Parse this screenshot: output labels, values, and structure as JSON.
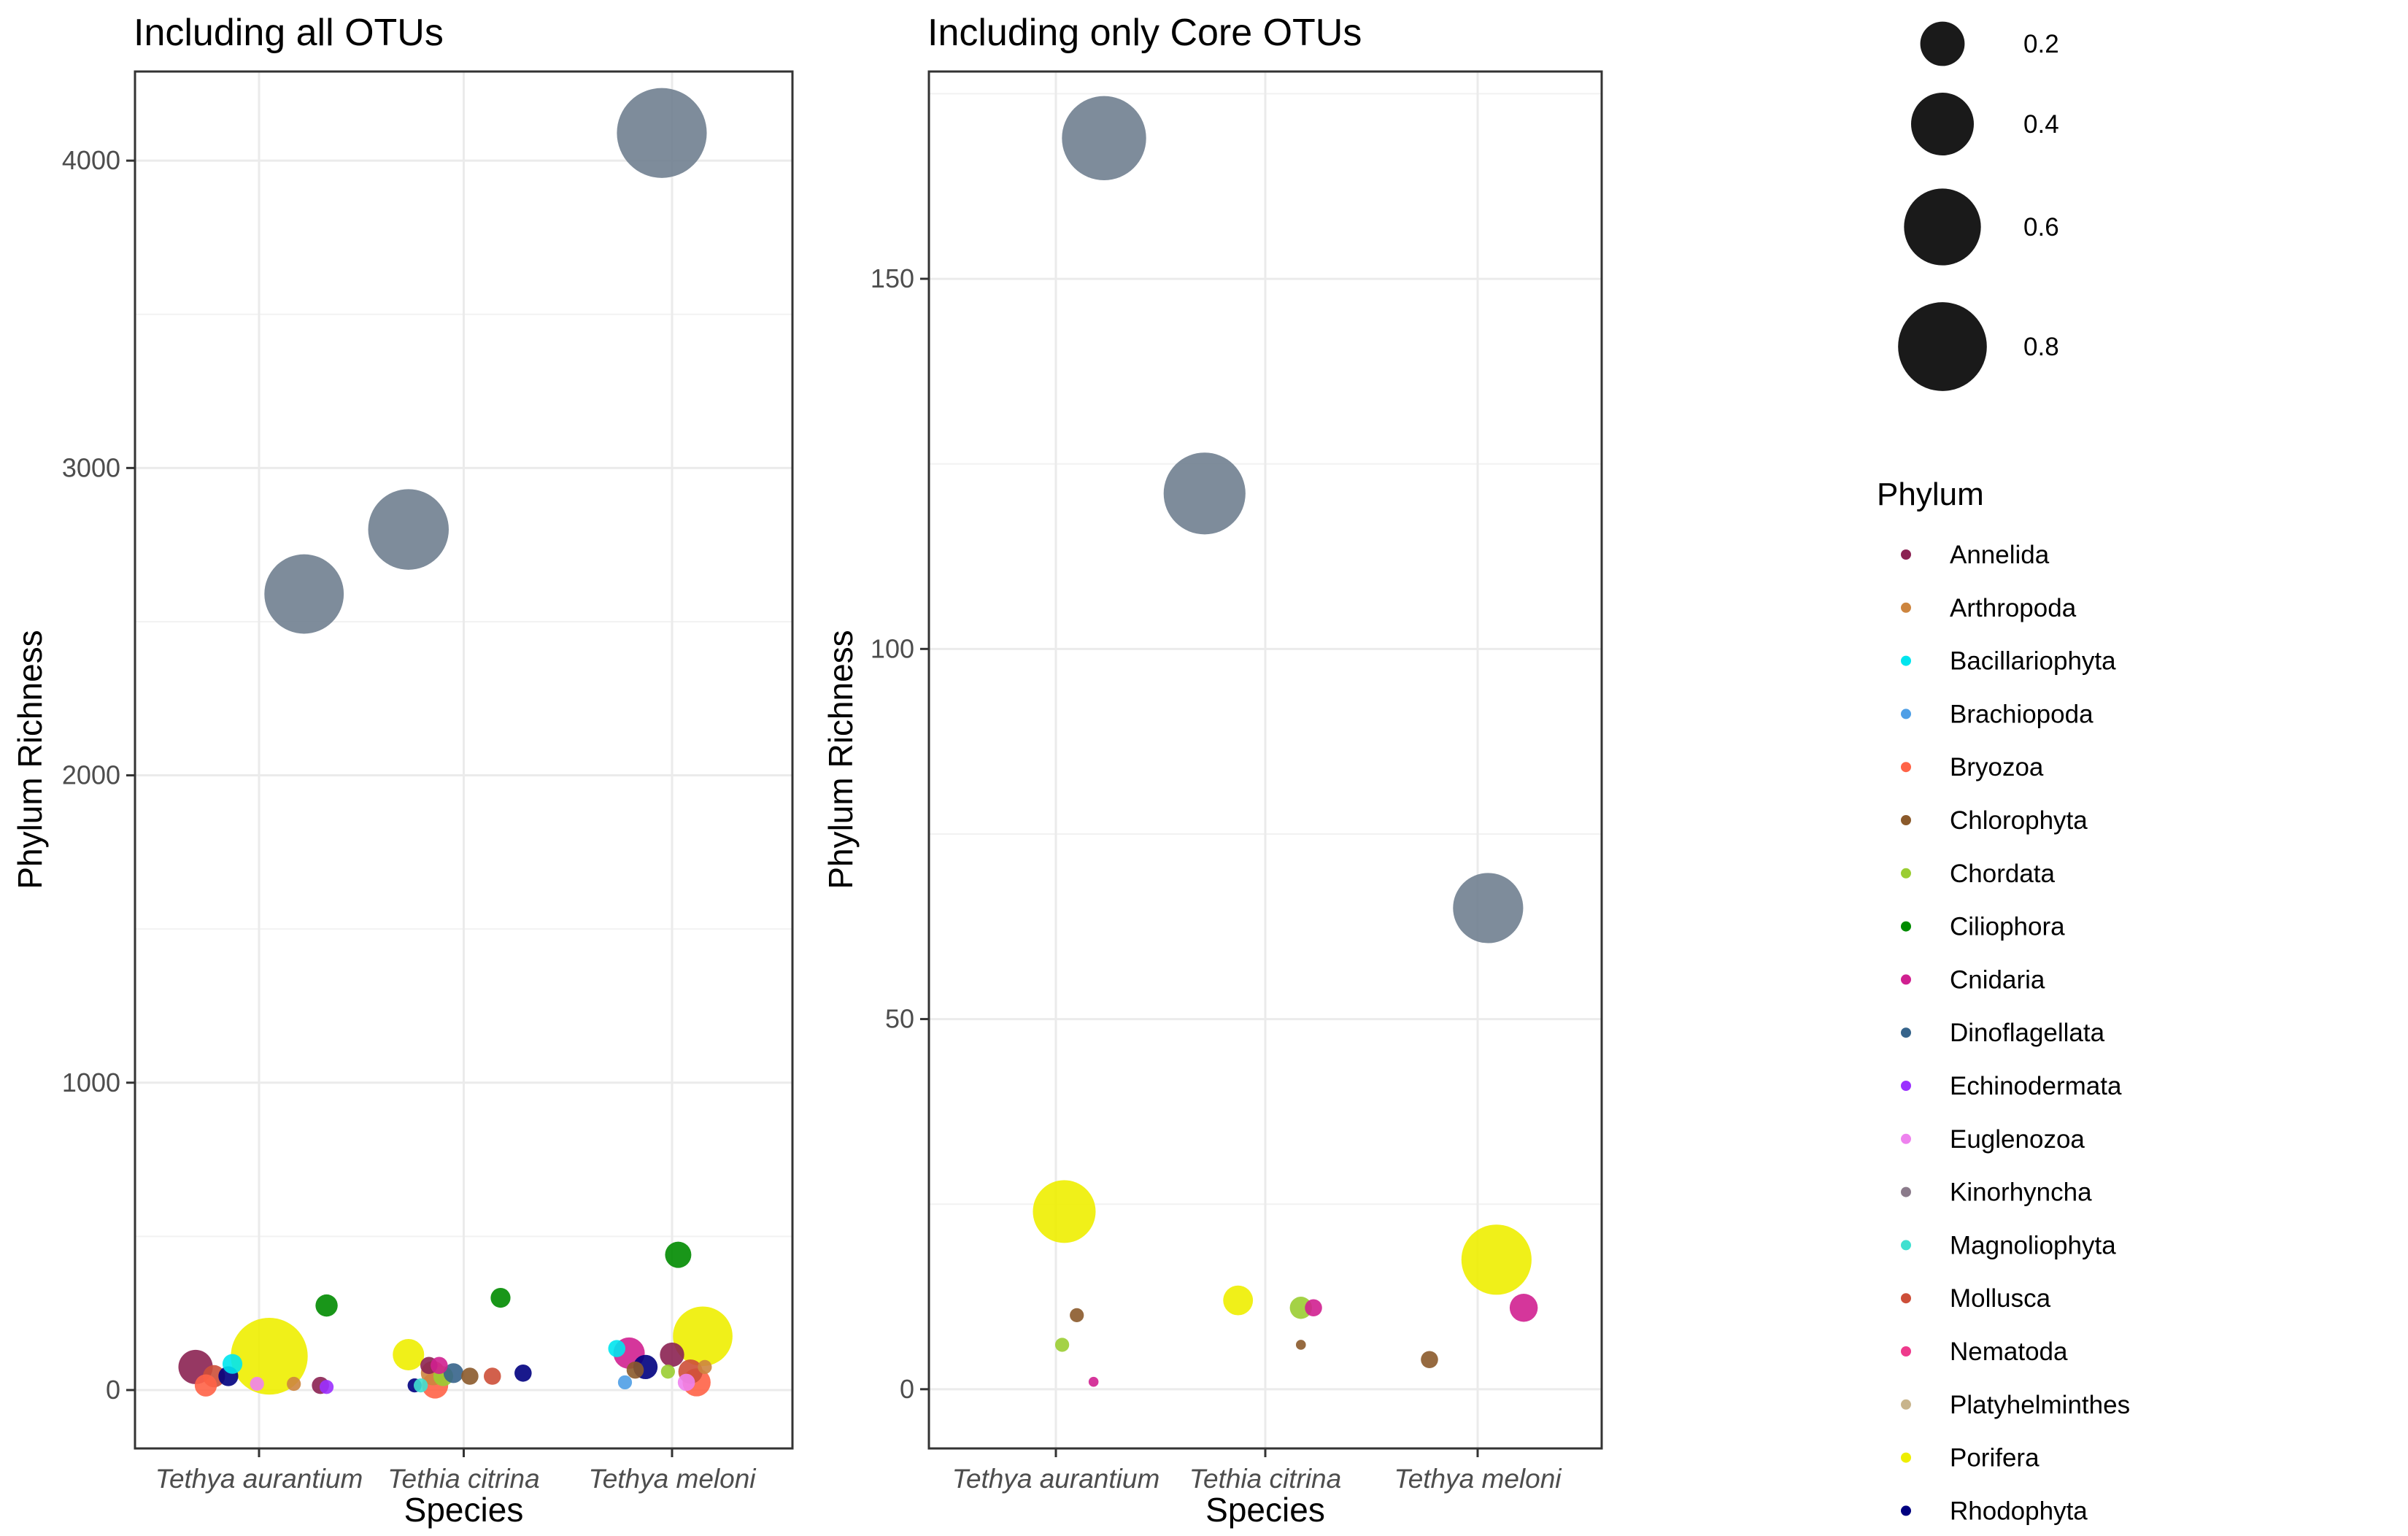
{
  "chart_data": [
    {
      "type": "scatter",
      "title": "Including all OTUs",
      "xlabel": "Species",
      "ylabel": "Phylum Richness",
      "categories": [
        "Tethya aurantium",
        "Tethia citrina",
        "Tethya meloni"
      ],
      "yticks": [
        0,
        1000,
        2000,
        3000,
        4000
      ],
      "ylim": [
        -190,
        4290
      ],
      "grid": true,
      "points": [
        {
          "category": 0,
          "offset": 0.22,
          "phylum": "Unassigned",
          "y": 2590,
          "size": 0.64
        },
        {
          "category": 0,
          "offset": 0.05,
          "phylum": "Porifera",
          "y": 110,
          "size": 0.6
        },
        {
          "category": 0,
          "offset": -0.31,
          "phylum": "Annelida",
          "y": 75,
          "size": 0.12
        },
        {
          "category": 0,
          "offset": -0.22,
          "phylum": "Mollusca",
          "y": 45,
          "size": 0.05
        },
        {
          "category": 0,
          "offset": -0.26,
          "phylum": "Bryozoa",
          "y": 15,
          "size": 0.05
        },
        {
          "category": 0,
          "offset": -0.15,
          "phylum": "Rhodophyta",
          "y": 45,
          "size": 0.04
        },
        {
          "category": 0,
          "offset": -0.13,
          "phylum": "Bacillariophyta",
          "y": 85,
          "size": 0.04
        },
        {
          "category": 0,
          "offset": 0.33,
          "phylum": "Ciliophora",
          "y": 275,
          "size": 0.05
        },
        {
          "category": 0,
          "offset": -0.01,
          "phylum": "Euglenozoa",
          "y": 20,
          "size": 0.02
        },
        {
          "category": 0,
          "offset": 0.3,
          "phylum": "Annelida",
          "y": 15,
          "size": 0.03
        },
        {
          "category": 0,
          "offset": 0.33,
          "phylum": "Echinodermata",
          "y": 10,
          "size": 0.02
        },
        {
          "category": 0,
          "offset": 0.17,
          "phylum": "Arthropoda",
          "y": 20,
          "size": 0.02
        },
        {
          "category": 1,
          "offset": -0.27,
          "phylum": "Unassigned",
          "y": 2800,
          "size": 0.66
        },
        {
          "category": 1,
          "offset": -0.27,
          "phylum": "Porifera",
          "y": 115,
          "size": 0.1
        },
        {
          "category": 1,
          "offset": -0.17,
          "phylum": "Annelida",
          "y": 80,
          "size": 0.03
        },
        {
          "category": 1,
          "offset": -0.12,
          "phylum": "Cnidaria",
          "y": 80,
          "size": 0.03
        },
        {
          "category": 1,
          "offset": -0.15,
          "phylum": "Arthropoda",
          "y": 55,
          "size": 0.06
        },
        {
          "category": 1,
          "offset": -0.1,
          "phylum": "Chordata",
          "y": 45,
          "size": 0.04
        },
        {
          "category": 1,
          "offset": -0.05,
          "phylum": "Dinoflagellata",
          "y": 55,
          "size": 0.04
        },
        {
          "category": 1,
          "offset": -0.14,
          "phylum": "Bryozoa",
          "y": 15,
          "size": 0.07
        },
        {
          "category": 1,
          "offset": 0.03,
          "phylum": "Chlorophyta",
          "y": 45,
          "size": 0.03
        },
        {
          "category": 1,
          "offset": 0.14,
          "phylum": "Mollusca",
          "y": 45,
          "size": 0.03
        },
        {
          "category": 1,
          "offset": 0.18,
          "phylum": "Ciliophora",
          "y": 300,
          "size": 0.04
        },
        {
          "category": 1,
          "offset": 0.29,
          "phylum": "Rhodophyta",
          "y": 55,
          "size": 0.03
        },
        {
          "category": 1,
          "offset": -0.24,
          "phylum": "Rhodophyta",
          "y": 15,
          "size": 0.02
        },
        {
          "category": 1,
          "offset": -0.21,
          "phylum": "Magnoliophyta",
          "y": 15,
          "size": 0.02
        },
        {
          "category": 2,
          "offset": -0.05,
          "phylum": "Unassigned",
          "y": 4090,
          "size": 0.82
        },
        {
          "category": 2,
          "offset": 0.15,
          "phylum": "Porifera",
          "y": 175,
          "size": 0.36
        },
        {
          "category": 2,
          "offset": 0.03,
          "phylum": "Ciliophora",
          "y": 440,
          "size": 0.07
        },
        {
          "category": 2,
          "offset": -0.21,
          "phylum": "Cnidaria",
          "y": 120,
          "size": 0.1
        },
        {
          "category": 2,
          "offset": 0.0,
          "phylum": "Annelida",
          "y": 115,
          "size": 0.06
        },
        {
          "category": 2,
          "offset": -0.27,
          "phylum": "Bacillariophyta",
          "y": 135,
          "size": 0.03
        },
        {
          "category": 2,
          "offset": -0.13,
          "phylum": "Rhodophyta",
          "y": 75,
          "size": 0.06
        },
        {
          "category": 2,
          "offset": -0.18,
          "phylum": "Chlorophyta",
          "y": 65,
          "size": 0.03
        },
        {
          "category": 2,
          "offset": -0.02,
          "phylum": "Chordata",
          "y": 60,
          "size": 0.02
        },
        {
          "category": 2,
          "offset": 0.09,
          "phylum": "Mollusca",
          "y": 60,
          "size": 0.06
        },
        {
          "category": 2,
          "offset": 0.16,
          "phylum": "Arthropoda",
          "y": 75,
          "size": 0.02
        },
        {
          "category": 2,
          "offset": 0.12,
          "phylum": "Bryozoa",
          "y": 25,
          "size": 0.08
        },
        {
          "category": 2,
          "offset": 0.07,
          "phylum": "Euglenozoa",
          "y": 25,
          "size": 0.03
        },
        {
          "category": 2,
          "offset": -0.23,
          "phylum": "Brachiopoda",
          "y": 25,
          "size": 0.02
        }
      ]
    },
    {
      "type": "scatter",
      "title": "Including only Core OTUs",
      "xlabel": "Species",
      "ylabel": "Phylum Richness",
      "categories": [
        "Tethya aurantium",
        "Tethia citrina",
        "Tethya meloni"
      ],
      "yticks": [
        0,
        50,
        100,
        150
      ],
      "ylim": [
        -8,
        178
      ],
      "grid": true,
      "points": [
        {
          "category": 0,
          "offset": 0.23,
          "phylum": "Unassigned",
          "y": 169,
          "size": 0.72
        },
        {
          "category": 0,
          "offset": 0.04,
          "phylum": "Porifera",
          "y": 24,
          "size": 0.4
        },
        {
          "category": 0,
          "offset": 0.1,
          "phylum": "Chlorophyta",
          "y": 10,
          "size": 0.02
        },
        {
          "category": 0,
          "offset": 0.03,
          "phylum": "Chordata",
          "y": 6,
          "size": 0.02
        },
        {
          "category": 0,
          "offset": 0.18,
          "phylum": "Cnidaria",
          "y": 1,
          "size": 0.01
        },
        {
          "category": 1,
          "offset": -0.29,
          "phylum": "Unassigned",
          "y": 121,
          "size": 0.68
        },
        {
          "category": 1,
          "offset": -0.13,
          "phylum": "Porifera",
          "y": 12,
          "size": 0.09
        },
        {
          "category": 1,
          "offset": 0.17,
          "phylum": "Chordata",
          "y": 11,
          "size": 0.05
        },
        {
          "category": 1,
          "offset": 0.23,
          "phylum": "Cnidaria",
          "y": 11,
          "size": 0.03
        },
        {
          "category": 1,
          "offset": 0.17,
          "phylum": "Chlorophyta",
          "y": 6,
          "size": 0.01
        },
        {
          "category": 2,
          "offset": 0.05,
          "phylum": "Unassigned",
          "y": 65,
          "size": 0.5
        },
        {
          "category": 2,
          "offset": 0.09,
          "phylum": "Porifera",
          "y": 17.5,
          "size": 0.5
        },
        {
          "category": 2,
          "offset": 0.22,
          "phylum": "Cnidaria",
          "y": 11,
          "size": 0.08
        },
        {
          "category": 2,
          "offset": -0.23,
          "phylum": "Chlorophyta",
          "y": 4,
          "size": 0.03
        }
      ]
    }
  ],
  "legend_size": {
    "entries": [
      {
        "value": 0.2,
        "label": "0.2"
      },
      {
        "value": 0.4,
        "label": "0.4"
      },
      {
        "value": 0.6,
        "label": "0.6"
      },
      {
        "value": 0.8,
        "label": "0.8"
      }
    ]
  },
  "legend_phylum": {
    "title": "Phylum",
    "entries": [
      {
        "label": "Annelida",
        "color": "#8B2252"
      },
      {
        "label": "Arthropoda",
        "color": "#CD853F"
      },
      {
        "label": "Bacillariophyta",
        "color": "#00E5EE"
      },
      {
        "label": "Brachiopoda",
        "color": "#4F9FE6"
      },
      {
        "label": "Bryozoa",
        "color": "#FF6347"
      },
      {
        "label": "Chlorophyta",
        "color": "#8B5A2B"
      },
      {
        "label": "Chordata",
        "color": "#9ACD32"
      },
      {
        "label": "Ciliophora",
        "color": "#008B00"
      },
      {
        "label": "Cnidaria",
        "color": "#D02090"
      },
      {
        "label": "Dinoflagellata",
        "color": "#36648B"
      },
      {
        "label": "Echinodermata",
        "color": "#9B30FF"
      },
      {
        "label": "Euglenozoa",
        "color": "#EE82EE"
      },
      {
        "label": "Kinorhyncha",
        "color": "#8B7B8B"
      },
      {
        "label": "Magnoliophyta",
        "color": "#40E0D0"
      },
      {
        "label": "Mollusca",
        "color": "#CD4F39"
      },
      {
        "label": "Nematoda",
        "color": "#EE3A8C"
      },
      {
        "label": "Platyhelminthes",
        "color": "#C8B48C"
      },
      {
        "label": "Porifera",
        "color": "#EEEE00"
      },
      {
        "label": "Rhodophyta",
        "color": "#000080"
      }
    ],
    "unlisted_colors": {
      "Unassigned": "#708090"
    }
  }
}
